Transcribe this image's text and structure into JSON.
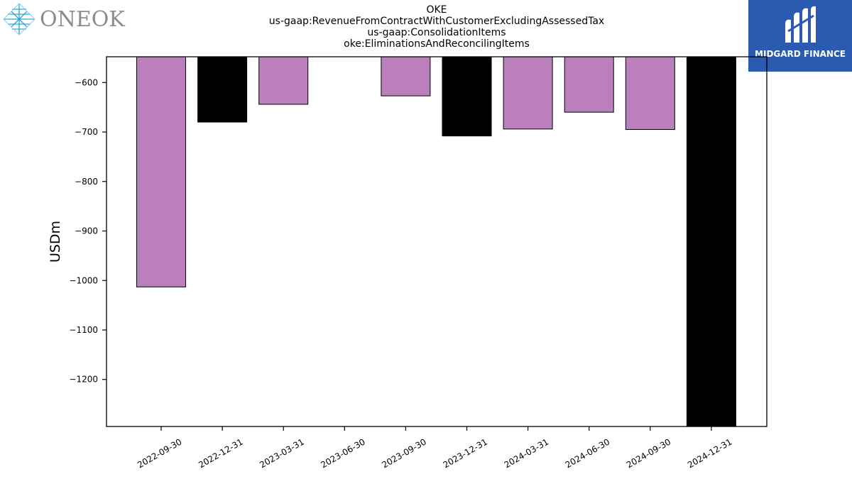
{
  "header": {
    "title_lines": [
      "OKE",
      "us-gaap:RevenueFromContractWithCustomerExcludingAssessedTax",
      "us-gaap:ConsolidationItems",
      "oke:EliminationsAndReconcilingItems"
    ]
  },
  "logos": {
    "left": {
      "text": "ONEOK",
      "icon": "oneok-diamond-icon",
      "color": "#8a8d91"
    },
    "right": {
      "text": "MIDGARD FINANCE",
      "icon": "midgard-m-icon",
      "background": "#2b5bb0"
    }
  },
  "chart_data": {
    "type": "bar",
    "title": "OKE us-gaap:RevenueFromContractWithCustomerExcludingAssessedTax us-gaap:ConsolidationItems oke:EliminationsAndReconcilingItems",
    "xlabel": "",
    "ylabel": "USDm",
    "ylim": [
      -1295,
      -548
    ],
    "yticks": [
      -600,
      -700,
      -800,
      -900,
      -1000,
      -1100,
      -1200
    ],
    "ytick_labels": [
      "−600",
      "−700",
      "−800",
      "−900",
      "−1000",
      "−1100",
      "−1200"
    ],
    "grid": false,
    "legend": "none",
    "categories": [
      "2022-09-30",
      "2022-12-31",
      "2023-03-31",
      "2023-06-30",
      "2023-09-30",
      "2023-12-31",
      "2024-03-31",
      "2024-06-30",
      "2024-09-30",
      "2024-12-31"
    ],
    "values": [
      -1013,
      -680,
      -644,
      null,
      -627,
      -708,
      -694,
      -660,
      -695,
      -1295
    ],
    "colors": [
      "#bb80bb",
      "#000000",
      "#bb80bb",
      "#bb80bb",
      "#bb80bb",
      "#000000",
      "#bb80bb",
      "#bb80bb",
      "#bb80bb",
      "#000000"
    ]
  }
}
